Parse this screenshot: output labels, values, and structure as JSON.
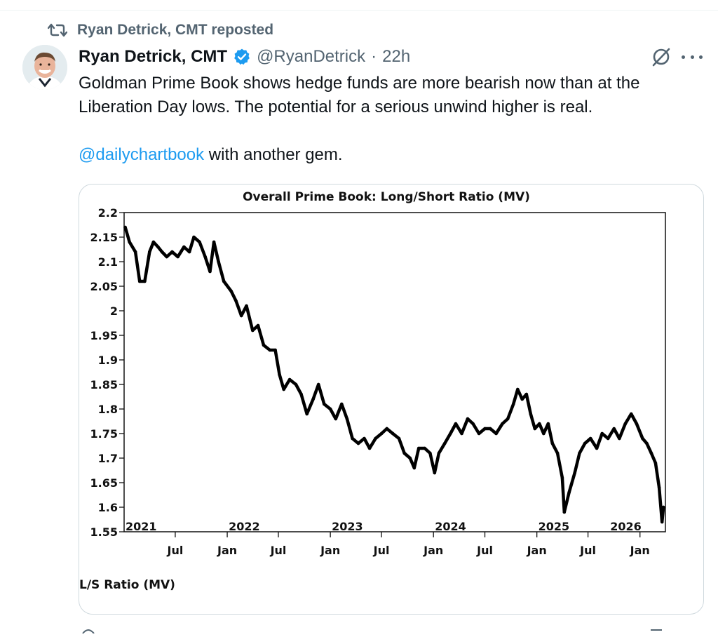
{
  "repost": {
    "label": "Ryan Detrick, CMT reposted",
    "icon": "repost-icon"
  },
  "author": {
    "display_name": "Ryan Detrick, CMT",
    "handle": "@RyanDetrick",
    "separator": "·",
    "time": "22h",
    "verified_color": "#1d9bf0"
  },
  "tweet": {
    "line1": "Goldman Prime Book shows hedge funds are more bearish now than at the",
    "line2": "Liberation Day lows. The potential for a serious unwind higher is real.",
    "mention": "@dailychartbook",
    "after_mention": " with another gem.",
    "mention_color": "#1d9bf0"
  },
  "chart_data": {
    "type": "line",
    "title": "Overall Prime Book: Long/Short Ratio (MV)",
    "legend": "L/S Ratio (MV)",
    "xlabel": "",
    "ylabel": "",
    "ylim": [
      1.55,
      2.2
    ],
    "yticks": [
      "2.2",
      "2.15",
      "2.1",
      "2.05",
      "2",
      "1.95",
      "1.9",
      "1.85",
      "1.8",
      "1.75",
      "1.7",
      "1.65",
      "1.6",
      "1.55"
    ],
    "year_labels": [
      {
        "label": "2021",
        "x": "2021-01"
      },
      {
        "label": "2022",
        "x": "2022-01"
      },
      {
        "label": "2023",
        "x": "2023-01"
      },
      {
        "label": "2024",
        "x": "2024-01"
      },
      {
        "label": "2025",
        "x": "2025-01"
      },
      {
        "label": "2026",
        "x": "2026-01"
      }
    ],
    "month_labels": [
      {
        "label": "Jul",
        "x": "2021-07"
      },
      {
        "label": "Jan",
        "x": "2022-01"
      },
      {
        "label": "Jul",
        "x": "2022-07"
      },
      {
        "label": "Jan",
        "x": "2023-01"
      },
      {
        "label": "Jul",
        "x": "2023-07"
      },
      {
        "label": "Jan",
        "x": "2024-01"
      },
      {
        "label": "Jul",
        "x": "2024-07"
      },
      {
        "label": "Jan",
        "x": "2025-01"
      },
      {
        "label": "Jul",
        "x": "2025-07"
      },
      {
        "label": "Jan",
        "x": "2026-01"
      }
    ],
    "x_start": "2021-01",
    "x_end": "2026-04",
    "series": [
      {
        "color": "#000000",
        "points": [
          [
            "2021-01-05",
            2.17
          ],
          [
            "2021-01-20",
            2.14
          ],
          [
            "2021-02-10",
            2.12
          ],
          [
            "2021-02-25",
            2.06
          ],
          [
            "2021-03-15",
            2.06
          ],
          [
            "2021-04-01",
            2.12
          ],
          [
            "2021-04-15",
            2.14
          ],
          [
            "2021-05-01",
            2.13
          ],
          [
            "2021-05-15",
            2.12
          ],
          [
            "2021-06-01",
            2.11
          ],
          [
            "2021-06-20",
            2.12
          ],
          [
            "2021-07-10",
            2.11
          ],
          [
            "2021-08-01",
            2.13
          ],
          [
            "2021-08-20",
            2.12
          ],
          [
            "2021-09-05",
            2.15
          ],
          [
            "2021-09-25",
            2.14
          ],
          [
            "2021-10-15",
            2.11
          ],
          [
            "2021-11-01",
            2.08
          ],
          [
            "2021-11-15",
            2.14
          ],
          [
            "2021-12-01",
            2.1
          ],
          [
            "2021-12-20",
            2.06
          ],
          [
            "2022-01-15",
            2.04
          ],
          [
            "2022-02-01",
            2.02
          ],
          [
            "2022-02-20",
            1.99
          ],
          [
            "2022-03-10",
            2.01
          ],
          [
            "2022-04-01",
            1.96
          ],
          [
            "2022-04-20",
            1.97
          ],
          [
            "2022-05-10",
            1.93
          ],
          [
            "2022-06-01",
            1.92
          ],
          [
            "2022-06-20",
            1.92
          ],
          [
            "2022-07-05",
            1.87
          ],
          [
            "2022-07-20",
            1.84
          ],
          [
            "2022-08-10",
            1.86
          ],
          [
            "2022-09-01",
            1.85
          ],
          [
            "2022-09-20",
            1.83
          ],
          [
            "2022-10-10",
            1.79
          ],
          [
            "2022-11-01",
            1.82
          ],
          [
            "2022-11-20",
            1.85
          ],
          [
            "2022-12-10",
            1.81
          ],
          [
            "2023-01-01",
            1.8
          ],
          [
            "2023-01-20",
            1.78
          ],
          [
            "2023-02-10",
            1.81
          ],
          [
            "2023-03-01",
            1.78
          ],
          [
            "2023-03-20",
            1.74
          ],
          [
            "2023-04-10",
            1.73
          ],
          [
            "2023-05-01",
            1.74
          ],
          [
            "2023-05-20",
            1.72
          ],
          [
            "2023-06-10",
            1.74
          ],
          [
            "2023-07-01",
            1.75
          ],
          [
            "2023-07-20",
            1.76
          ],
          [
            "2023-08-10",
            1.75
          ],
          [
            "2023-09-01",
            1.74
          ],
          [
            "2023-09-20",
            1.71
          ],
          [
            "2023-10-10",
            1.7
          ],
          [
            "2023-10-25",
            1.68
          ],
          [
            "2023-11-10",
            1.72
          ],
          [
            "2023-12-01",
            1.72
          ],
          [
            "2023-12-20",
            1.71
          ],
          [
            "2024-01-05",
            1.67
          ],
          [
            "2024-01-20",
            1.71
          ],
          [
            "2024-02-10",
            1.73
          ],
          [
            "2024-03-01",
            1.75
          ],
          [
            "2024-03-20",
            1.77
          ],
          [
            "2024-04-10",
            1.75
          ],
          [
            "2024-05-01",
            1.78
          ],
          [
            "2024-05-20",
            1.77
          ],
          [
            "2024-06-10",
            1.75
          ],
          [
            "2024-07-01",
            1.76
          ],
          [
            "2024-07-20",
            1.76
          ],
          [
            "2024-08-10",
            1.75
          ],
          [
            "2024-09-01",
            1.77
          ],
          [
            "2024-09-20",
            1.78
          ],
          [
            "2024-10-10",
            1.81
          ],
          [
            "2024-10-25",
            1.84
          ],
          [
            "2024-11-10",
            1.82
          ],
          [
            "2024-11-25",
            1.83
          ],
          [
            "2024-12-10",
            1.79
          ],
          [
            "2024-12-25",
            1.76
          ],
          [
            "2025-01-10",
            1.77
          ],
          [
            "2025-01-25",
            1.75
          ],
          [
            "2025-02-10",
            1.77
          ],
          [
            "2025-02-25",
            1.73
          ],
          [
            "2025-03-15",
            1.71
          ],
          [
            "2025-04-01",
            1.66
          ],
          [
            "2025-04-08",
            1.59
          ],
          [
            "2025-04-25",
            1.63
          ],
          [
            "2025-05-15",
            1.67
          ],
          [
            "2025-06-01",
            1.71
          ],
          [
            "2025-06-20",
            1.73
          ],
          [
            "2025-07-10",
            1.74
          ],
          [
            "2025-08-01",
            1.72
          ],
          [
            "2025-08-20",
            1.75
          ],
          [
            "2025-09-10",
            1.74
          ],
          [
            "2025-10-01",
            1.76
          ],
          [
            "2025-10-20",
            1.74
          ],
          [
            "2025-11-10",
            1.77
          ],
          [
            "2025-12-01",
            1.79
          ],
          [
            "2025-12-20",
            1.77
          ],
          [
            "2026-01-10",
            1.74
          ],
          [
            "2026-01-25",
            1.73
          ],
          [
            "2026-02-10",
            1.71
          ],
          [
            "2026-02-25",
            1.69
          ],
          [
            "2026-03-10",
            1.64
          ],
          [
            "2026-03-20",
            1.57
          ],
          [
            "2026-03-25",
            1.6
          ]
        ]
      }
    ]
  }
}
